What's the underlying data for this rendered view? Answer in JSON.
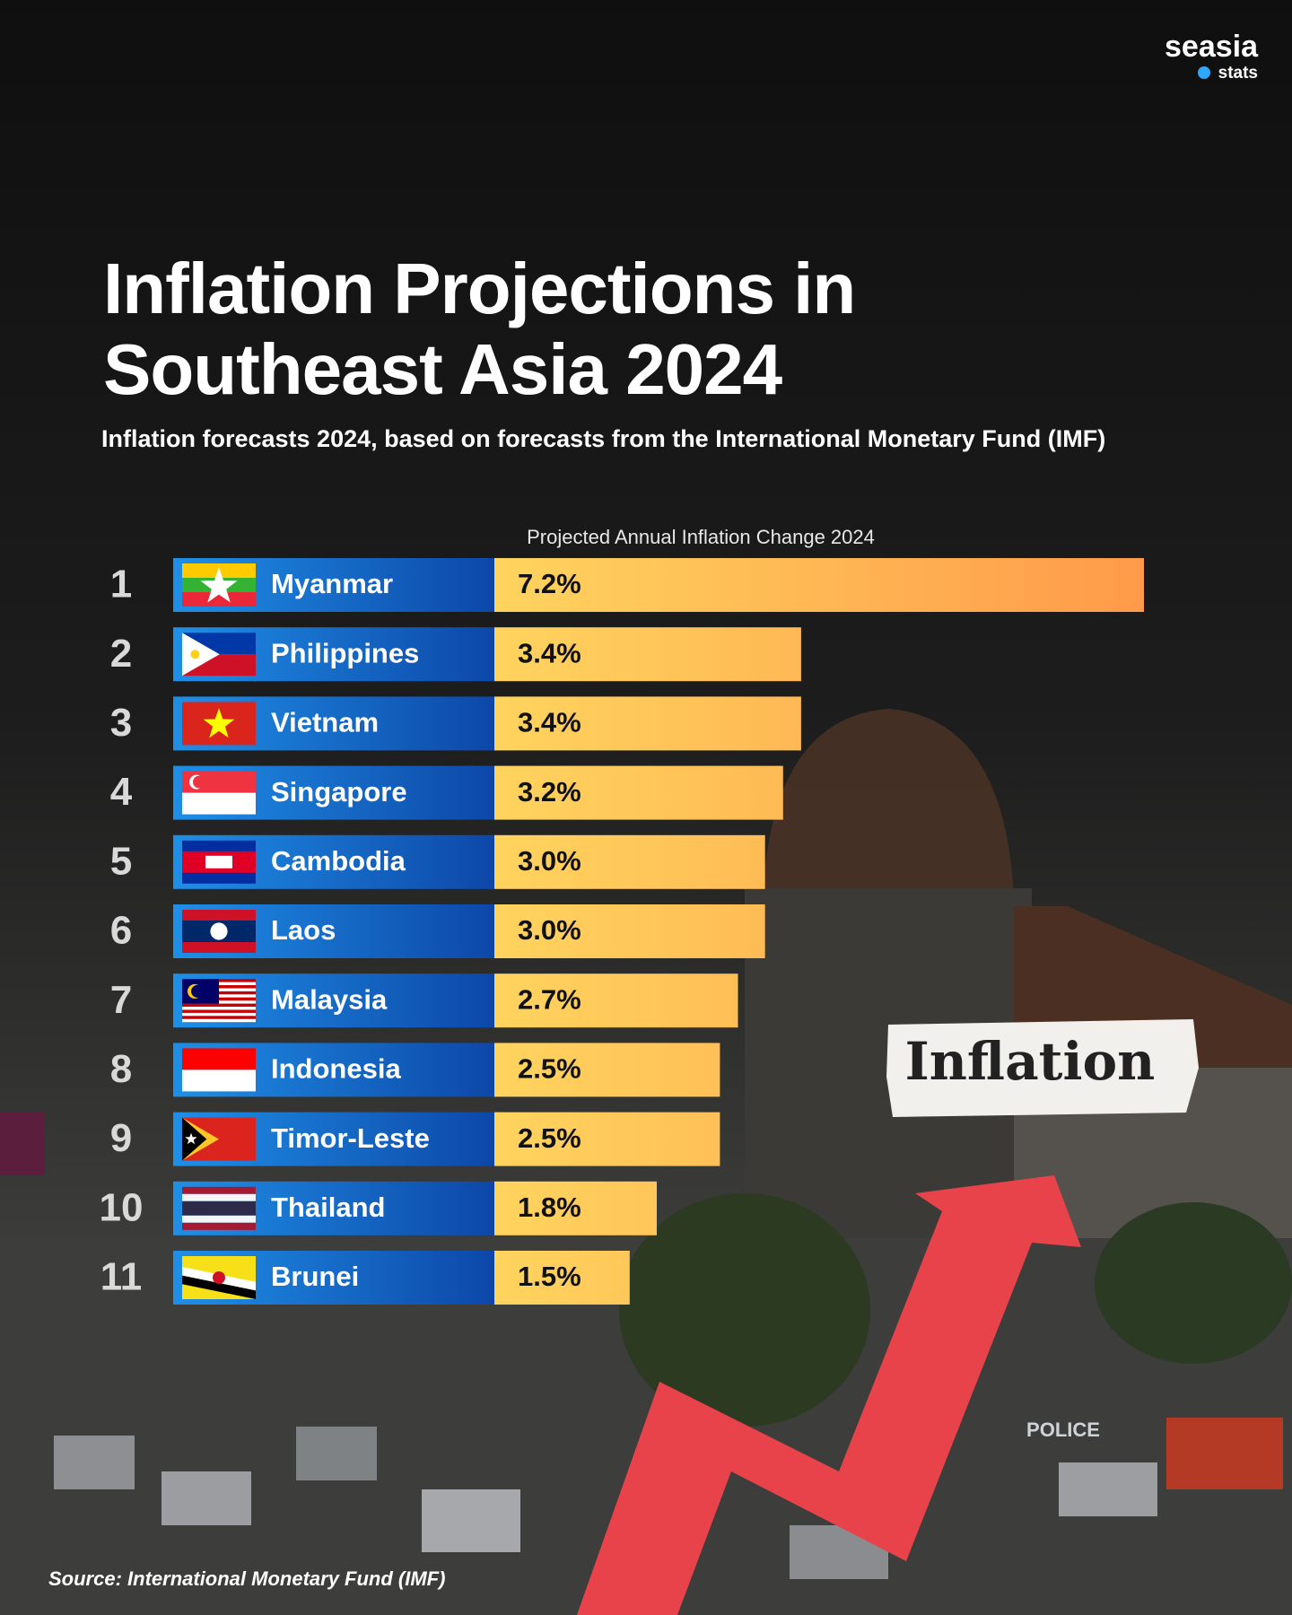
{
  "chart_data": {
    "type": "bar",
    "orientation": "horizontal",
    "title": "Inflation Projections in Southeast Asia 2024",
    "subtitle": "Inflation forecasts 2024, based on forecasts from the International Monetary Fund (IMF)",
    "value_axis_label": "Projected Annual Inflation Change 2024",
    "ranks": [
      "1",
      "2",
      "3",
      "4",
      "5",
      "6",
      "7",
      "8",
      "9",
      "10",
      "11"
    ],
    "categories": [
      "Myanmar",
      "Philippines",
      "Vietnam",
      "Singapore",
      "Cambodia",
      "Laos",
      "Malaysia",
      "Indonesia",
      "Timor-Leste",
      "Thailand",
      "Brunei"
    ],
    "values": [
      7.2,
      3.4,
      3.4,
      3.2,
      3.0,
      3.0,
      2.7,
      2.5,
      2.5,
      1.8,
      1.5
    ],
    "value_labels": [
      "7.2%",
      "3.4%",
      "3.4%",
      "3.2%",
      "3.0%",
      "3.0%",
      "2.7%",
      "2.5%",
      "2.5%",
      "1.8%",
      "1.5%"
    ],
    "xlim": [
      0,
      7.2
    ],
    "bar_colors": [
      "#ffd45e",
      "#ff9a4a"
    ],
    "label_box_colors": [
      "#1f8fe6",
      "#0d47a8"
    ],
    "source": "Source: International Monetary Fund (IMF)",
    "brand": "seasia",
    "brand_sub": "stats",
    "photo_texts": [
      "Inflation",
      "POLICE"
    ]
  }
}
